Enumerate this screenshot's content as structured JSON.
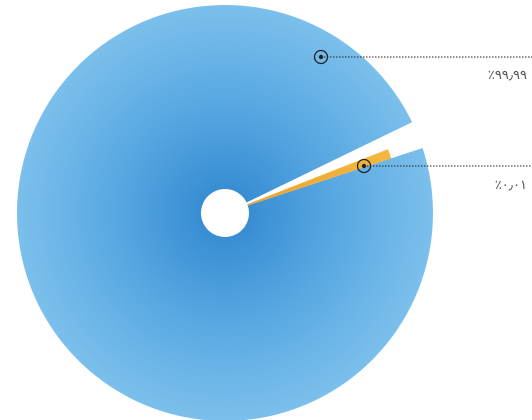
{
  "chart_data": {
    "type": "pie",
    "slices": [
      {
        "label": "٪۹۹٫۹۹",
        "value": 99.99,
        "color": "#4b9fdc"
      },
      {
        "label": "٪۰٫۰۱",
        "value": 0.01,
        "color": "#f0a830"
      }
    ],
    "title": "",
    "legend": "none",
    "grid": false
  }
}
